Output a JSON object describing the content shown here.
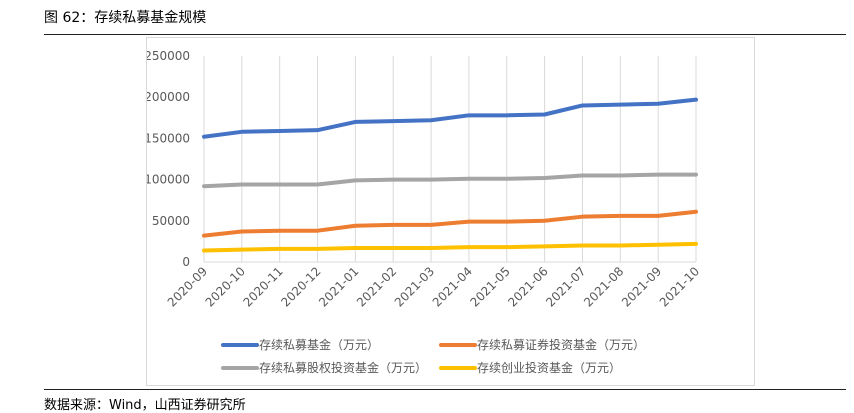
{
  "page": {
    "title": "图 62：存续私募基金规模",
    "source": "数据来源：Wind，山西证券研究所"
  },
  "chart_data": {
    "type": "line",
    "title": "",
    "xlabel": "",
    "ylabel": "",
    "ylim": [
      0,
      250000
    ],
    "yticks": [
      0,
      50000,
      100000,
      150000,
      200000,
      250000
    ],
    "grid": "vertical",
    "legend_position": "bottom",
    "categories": [
      "2020-09",
      "2020-10",
      "2020-11",
      "2020-12",
      "2021-01",
      "2021-02",
      "2021-03",
      "2021-04",
      "2021-05",
      "2021-06",
      "2021-07",
      "2021-08",
      "2021-09",
      "2021-10"
    ],
    "series": [
      {
        "name": "存续私募基金（万元）",
        "color": "#4472C4",
        "values": [
          152000,
          158000,
          159000,
          160000,
          170000,
          171000,
          172000,
          178000,
          178000,
          179000,
          190000,
          191000,
          192000,
          197000
        ]
      },
      {
        "name": "存续私募证券投资基金（万元）",
        "color": "#ED7D31",
        "values": [
          32000,
          37000,
          38000,
          38000,
          44000,
          45000,
          45000,
          49000,
          49000,
          50000,
          55000,
          56000,
          56000,
          61000
        ]
      },
      {
        "name": "存续私募股权投资基金（万元）",
        "color": "#A5A5A5",
        "values": [
          92000,
          94000,
          94000,
          94000,
          99000,
          100000,
          100000,
          101000,
          101000,
          102000,
          105000,
          105000,
          106000,
          106000
        ]
      },
      {
        "name": "存续创业投资基金（万元）",
        "color": "#FFC000",
        "values": [
          14000,
          15000,
          16000,
          16000,
          17000,
          17000,
          17000,
          18000,
          18000,
          19000,
          20000,
          20000,
          21000,
          22000
        ]
      }
    ]
  }
}
